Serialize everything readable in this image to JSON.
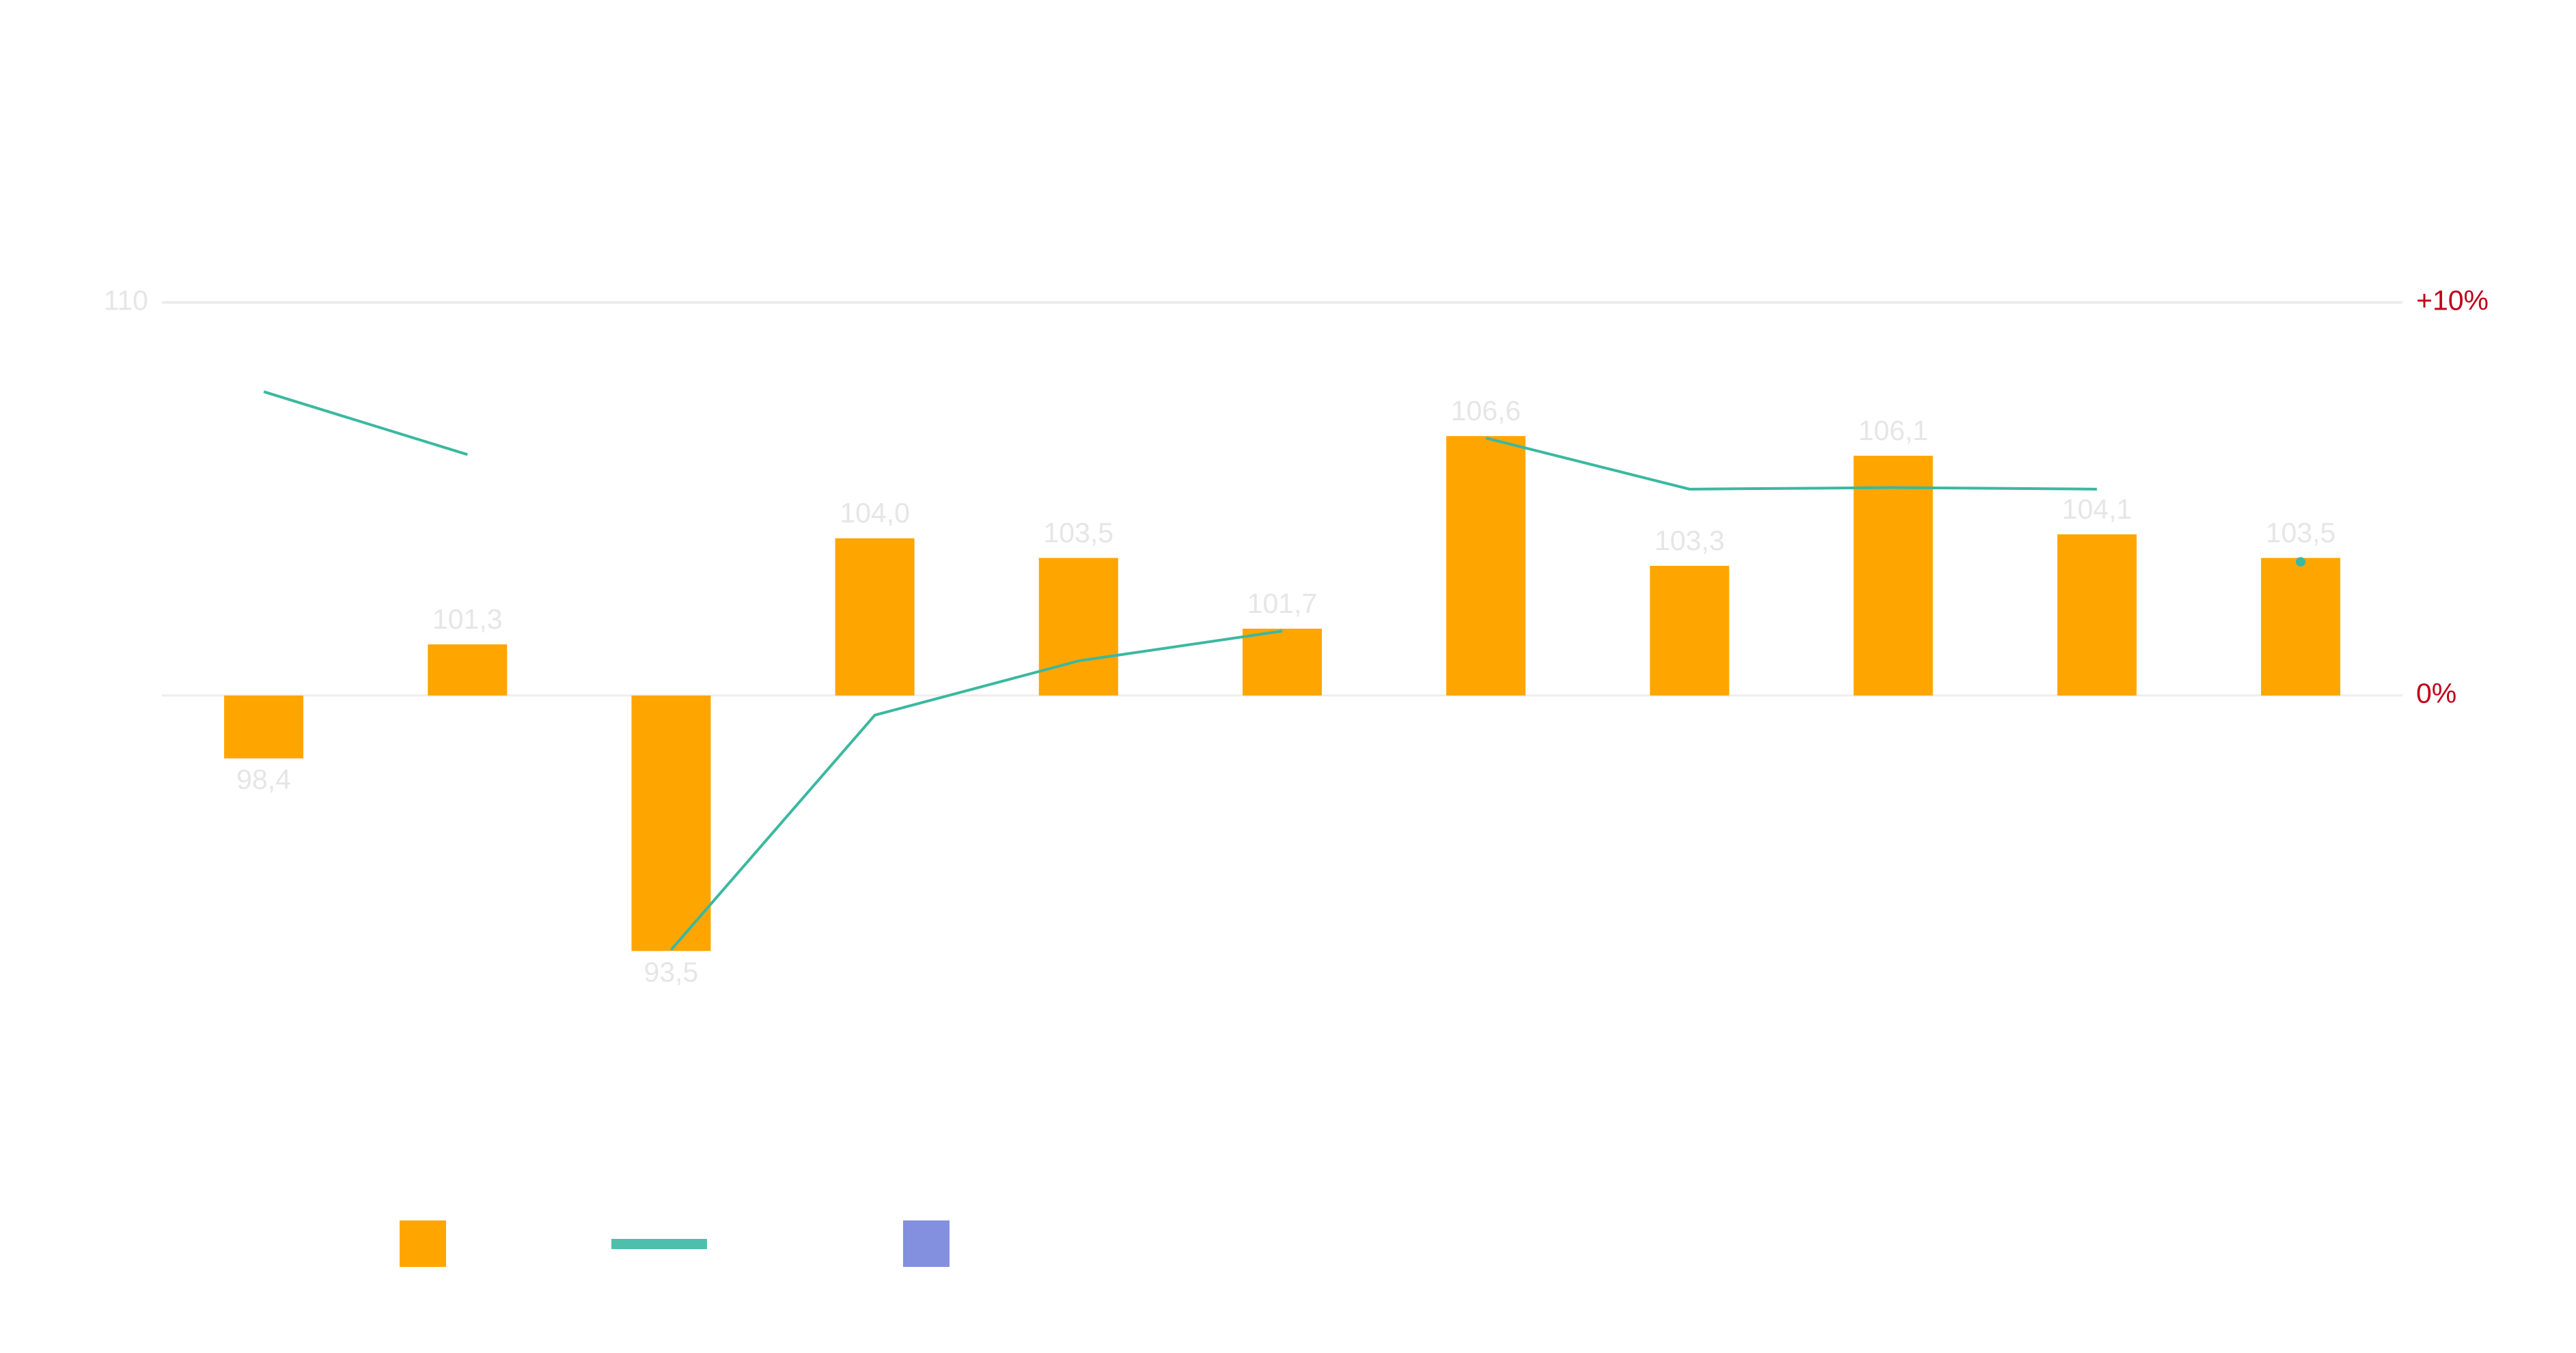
{
  "chart_data": {
    "type": "bar",
    "categories": [
      null,
      null,
      null,
      null,
      null,
      null,
      null,
      null,
      null,
      null,
      null
    ],
    "values": [
      98.4,
      101.3,
      93.5,
      104.0,
      103.5,
      101.7,
      106.6,
      103.3,
      106.1,
      104.1,
      103.5
    ],
    "value_labels": [
      "98,4",
      "101,3",
      "93,5",
      "104,0",
      "103,5",
      "101,7",
      "106,6",
      "103,3",
      "106,1",
      "104,1",
      "103,5"
    ],
    "color": "#ffa500",
    "bar_base": 100,
    "ylim": [
      90,
      115
    ],
    "yticks": [
      110
    ],
    "y2lim": [
      -10,
      15
    ],
    "y2ticks": [
      {
        "value": 0,
        "label": "0%"
      },
      {
        "value": 10,
        "label": "+10%"
      }
    ],
    "series": [
      {
        "color": "#3bb8a0",
        "axis": "y2",
        "values": [
          7.73,
          6.13,
          null,
          null,
          null,
          null,
          null,
          null,
          null,
          null,
          null
        ]
      },
      {
        "color": "#3bb8a0",
        "axis": "y2",
        "values": [
          null,
          null,
          -6.47,
          -0.5,
          0.88,
          1.64,
          null,
          null,
          null,
          null,
          null
        ]
      },
      {
        "color": "#3bb8a0",
        "axis": "y2",
        "values": [
          null,
          null,
          null,
          null,
          null,
          null,
          6.55,
          5.25,
          5.29,
          5.25,
          null
        ]
      },
      {
        "color": "#3bb8a0",
        "axis": "y2",
        "values": [
          null,
          null,
          null,
          null,
          null,
          null,
          null,
          null,
          null,
          null,
          3.4
        ]
      }
    ],
    "legend": [
      {
        "color": "#ffa500",
        "marker": "square"
      },
      {
        "color": "#4fbfac",
        "marker": "line"
      },
      {
        "color": "#8390e0",
        "marker": "square"
      }
    ]
  }
}
